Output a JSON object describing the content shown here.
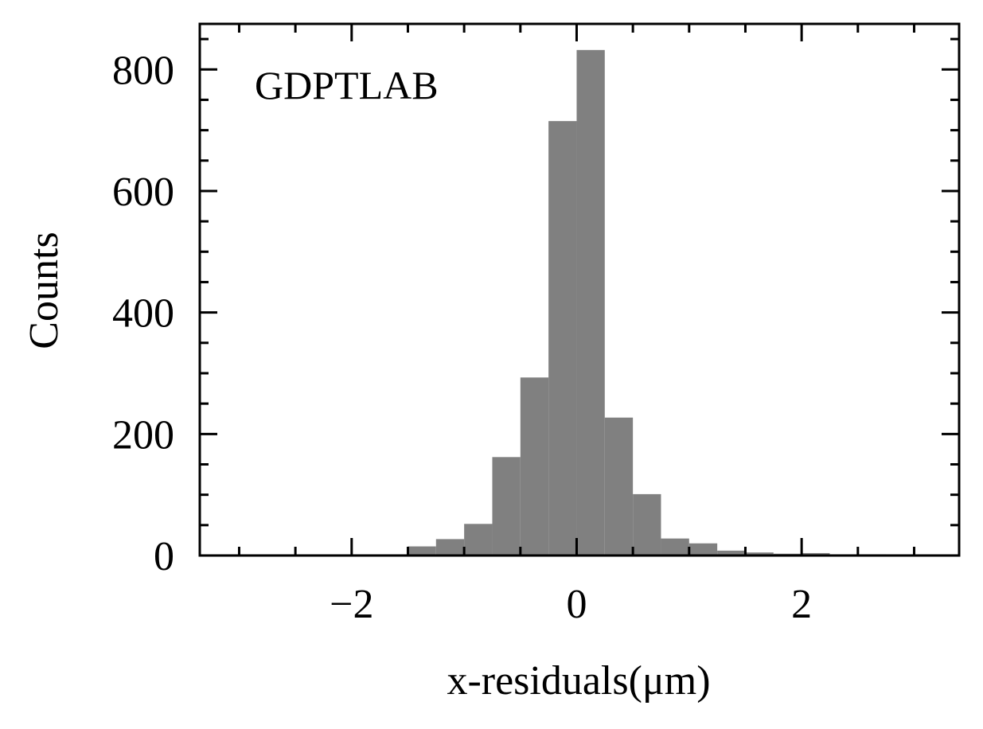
{
  "chart_data": {
    "type": "bar",
    "xlabel": "x-residuals(μm)",
    "ylabel": "Counts",
    "annotation": "GDPTLAB",
    "xlim": [
      -3.35,
      3.4
    ],
    "ylim": [
      0,
      875
    ],
    "bar_color": "#808080",
    "bin_width": 0.25,
    "bins": [
      {
        "left": -1.5,
        "count": 15
      },
      {
        "left": -1.25,
        "count": 27
      },
      {
        "left": -1.0,
        "count": 52
      },
      {
        "left": -0.75,
        "count": 162
      },
      {
        "left": -0.5,
        "count": 293
      },
      {
        "left": -0.25,
        "count": 715
      },
      {
        "left": 0.0,
        "count": 832
      },
      {
        "left": 0.25,
        "count": 227
      },
      {
        "left": 0.5,
        "count": 101
      },
      {
        "left": 0.75,
        "count": 28
      },
      {
        "left": 1.0,
        "count": 20
      },
      {
        "left": 1.25,
        "count": 8
      },
      {
        "left": 1.5,
        "count": 5
      },
      {
        "left": 1.75,
        "count": 3
      },
      {
        "left": 2.0,
        "count": 4
      },
      {
        "left": 2.25,
        "count": 1
      },
      {
        "left": 2.5,
        "count": 2
      }
    ],
    "x_ticks": [
      {
        "value": -2,
        "label": "−2"
      },
      {
        "value": 0,
        "label": "0"
      },
      {
        "value": 2,
        "label": "2"
      }
    ],
    "x_minor_ticks": [
      -3,
      -2.5,
      -1.5,
      -1,
      -0.5,
      0.5,
      1,
      1.5,
      2.5,
      3
    ],
    "y_ticks": [
      {
        "value": 0,
        "label": "0"
      },
      {
        "value": 200,
        "label": "200"
      },
      {
        "value": 400,
        "label": "400"
      },
      {
        "value": 600,
        "label": "600"
      },
      {
        "value": 800,
        "label": "800"
      }
    ],
    "y_minor_ticks": [
      50,
      100,
      150,
      250,
      300,
      350,
      450,
      500,
      550,
      650,
      700,
      750,
      850
    ],
    "grid": false
  }
}
